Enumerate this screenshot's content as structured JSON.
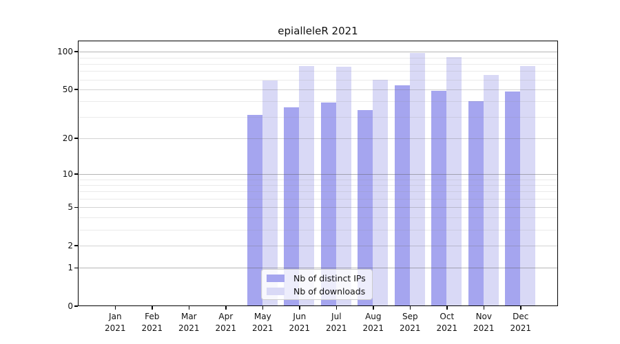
{
  "window": {
    "background": "#ffffff"
  },
  "colors": {
    "bar_distinct_ips": "#a5a5ef",
    "bar_downloads": "#d9d9f6",
    "grid_decade": "#b4b4b4",
    "grid_labeled": "#d3d3d3",
    "grid_minor": "#eaeaea",
    "spine": "#000000",
    "text": "#111111",
    "legend_background": "rgba(255,255,255,0.8)",
    "legend_border": "#cccccc"
  },
  "legend": {
    "items": [
      {
        "label": "Nb of distinct IPs",
        "color": "#a5a5ef"
      },
      {
        "label": "Nb of downloads",
        "color": "#d9d9f6"
      }
    ]
  },
  "chart_data": {
    "type": "bar",
    "title": "epialleleR 2021",
    "categories": [
      "Jan 2021",
      "Feb 2021",
      "Mar 2021",
      "Apr 2021",
      "May 2021",
      "Jun 2021",
      "Jul 2021",
      "Aug 2021",
      "Sep 2021",
      "Oct 2021",
      "Nov 2021",
      "Dec 2021"
    ],
    "series": [
      {
        "name": "Nb of distinct IPs",
        "color": "#a5a5ef",
        "values": [
          0,
          0,
          0,
          0,
          31,
          36,
          39,
          34,
          54,
          49,
          40,
          48
        ]
      },
      {
        "name": "Nb of downloads",
        "color": "#d9d9f6",
        "values": [
          0,
          0,
          0,
          0,
          59,
          77,
          76,
          60,
          98,
          91,
          65,
          77
        ]
      }
    ],
    "xlabel": "",
    "ylabel": "",
    "yscale": "log1p",
    "ylim": [
      0,
      124
    ],
    "yticks": [
      0,
      1,
      2,
      5,
      10,
      20,
      50,
      100
    ],
    "yticks_decade": [
      1,
      10,
      100
    ],
    "yticks_minor": [
      3,
      4,
      6,
      7,
      8,
      9,
      30,
      40,
      60,
      70,
      80,
      90
    ],
    "grid": true,
    "legend_position": "inside-bottom-center"
  }
}
